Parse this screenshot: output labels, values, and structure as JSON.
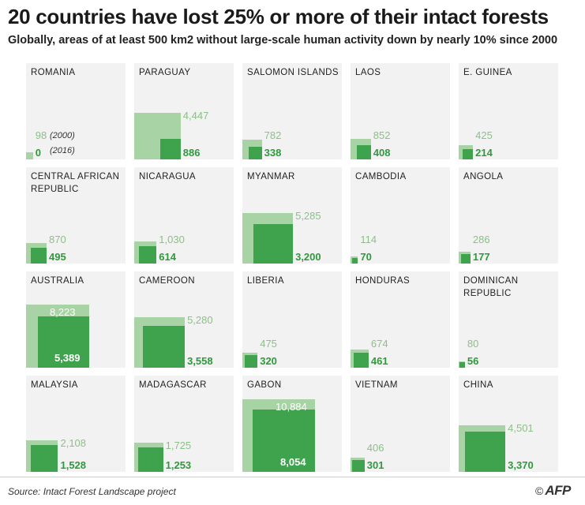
{
  "title": "20 countries have lost 25% or more of their intact forests",
  "subtitle": "Globally, areas of at least 500 km2 without large-scale human activity down by nearly 10% since 2000",
  "source": "Source: Intact Forest Landscape project",
  "logo": {
    "copyright": "©",
    "text": "AFP"
  },
  "colors": {
    "value_2000": "#a8d3a5",
    "value_2016": "#3fa34d",
    "panel": "#f2f2f2"
  },
  "chart_data": {
    "type": "proportional-area small multiples",
    "title": "20 countries have lost 25% or more of their intact forests",
    "unit": "km2",
    "legend": {
      "year_a": "(2000)",
      "year_b": "(2016)"
    },
    "countries": [
      {
        "name": "Romania",
        "v2000": 98,
        "v2016": 0,
        "label2000": "98",
        "label2016": "0"
      },
      {
        "name": "Paraguay",
        "v2000": 4447,
        "v2016": 886,
        "label2000": "4,447",
        "label2016": "886"
      },
      {
        "name": "Salomon Islands",
        "v2000": 782,
        "v2016": 338,
        "label2000": "782",
        "label2016": "338"
      },
      {
        "name": "Laos",
        "v2000": 852,
        "v2016": 408,
        "label2000": "852",
        "label2016": "408"
      },
      {
        "name": "E. Guinea",
        "v2000": 425,
        "v2016": 214,
        "label2000": "425",
        "label2016": "214"
      },
      {
        "name": "Central african republic",
        "v2000": 870,
        "v2016": 495,
        "label2000": "870",
        "label2016": "495"
      },
      {
        "name": "Nicaragua",
        "v2000": 1030,
        "v2016": 614,
        "label2000": "1,030",
        "label2016": "614"
      },
      {
        "name": "Myanmar",
        "v2000": 5285,
        "v2016": 3200,
        "label2000": "5,285",
        "label2016": "3,200"
      },
      {
        "name": "Cambodia",
        "v2000": 114,
        "v2016": 70,
        "label2000": "114",
        "label2016": "70"
      },
      {
        "name": "Angola",
        "v2000": 286,
        "v2016": 177,
        "label2000": "286",
        "label2016": "177"
      },
      {
        "name": "Australia",
        "v2000": 8223,
        "v2016": 5389,
        "label2000": "8,223",
        "label2016": "5,389"
      },
      {
        "name": "Cameroon",
        "v2000": 5280,
        "v2016": 3558,
        "label2000": "5,280",
        "label2016": "3,558"
      },
      {
        "name": "Liberia",
        "v2000": 475,
        "v2016": 320,
        "label2000": "475",
        "label2016": "320"
      },
      {
        "name": "Honduras",
        "v2000": 674,
        "v2016": 461,
        "label2000": "674",
        "label2016": "461"
      },
      {
        "name": "Dominican Republic",
        "v2000": 80,
        "v2016": 56,
        "label2000": "80",
        "label2016": "56"
      },
      {
        "name": "Malaysia",
        "v2000": 2108,
        "v2016": 1528,
        "label2000": "2,108",
        "label2016": "1,528"
      },
      {
        "name": "Madagascar",
        "v2000": 1725,
        "v2016": 1253,
        "label2000": "1,725",
        "label2016": "1,253"
      },
      {
        "name": "Gabon",
        "v2000": 10884,
        "v2016": 8054,
        "label2000": "10,884",
        "label2016": "8,054"
      },
      {
        "name": "Vietnam",
        "v2000": 406,
        "v2016": 301,
        "label2000": "406",
        "label2016": "301"
      },
      {
        "name": "China",
        "v2000": 4501,
        "v2016": 3370,
        "label2000": "4,501",
        "label2016": "3,370"
      }
    ]
  }
}
